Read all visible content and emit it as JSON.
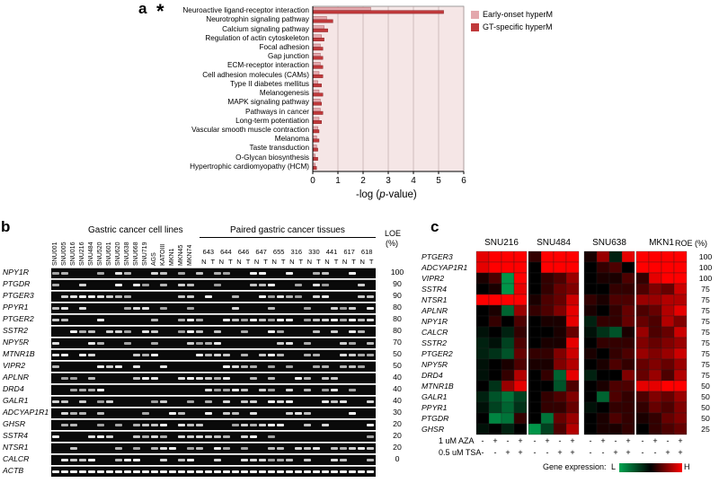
{
  "panel_labels": {
    "a": "a",
    "b": "b",
    "c": "c"
  },
  "chart_data": [
    {
      "type": "bar",
      "panel": "a",
      "star_marker": "*",
      "categories": [
        "Neuroactive ligand-receptor interaction",
        "Neurotrophin signaling pathway",
        "Calcium signaling pathway",
        "Regulation of actin cytoskeleton",
        "Focal adhesion",
        "Gap junction",
        "ECM-receptor interaction",
        "Cell adhesion molecules (CAMs)",
        "Type II diabetes mellitus",
        "Melanogenesis",
        "MAPK signaling pathway",
        "Pathways in cancer",
        "Long-term potentiation",
        "Vascular smooth muscle contraction",
        "Melanoma",
        "Taste transduction",
        "O-Glycan biosynthesis",
        "Hypertrophic cardiomyopathy (HCM)"
      ],
      "series": [
        {
          "name": "Early-onset hyperM",
          "color": "#e3a8ad",
          "values": [
            2.3,
            0.55,
            0.45,
            0.35,
            0.3,
            0.3,
            0.3,
            0.25,
            0.2,
            0.25,
            0.3,
            0.3,
            0.25,
            0.2,
            0.15,
            0.15,
            0.1,
            0.1
          ]
        },
        {
          "name": "GT-specific hyperM",
          "color": "#c0393b",
          "values": [
            5.2,
            0.8,
            0.6,
            0.45,
            0.4,
            0.4,
            0.4,
            0.4,
            0.35,
            0.4,
            0.35,
            0.4,
            0.35,
            0.25,
            0.25,
            0.2,
            0.2,
            0.15
          ]
        }
      ],
      "xlabel_prefix": "-log (",
      "xlabel_italic": "p",
      "xlabel_suffix": "-value)",
      "xticks": [
        "0",
        "1",
        "2",
        "3",
        "4",
        "5",
        "6"
      ],
      "xlim": [
        0,
        6
      ],
      "plot_background": "#f5e6e6",
      "legend_position": "top-right"
    },
    {
      "type": "table",
      "panel": "b",
      "group_labels": {
        "cell_lines": "Gastric cancer cell lines",
        "tissues": "Paired gastric cancer tissues"
      },
      "cell_lines": [
        "SNU001",
        "SNU005",
        "SNU016",
        "SNU216",
        "SNU484",
        "SNU520",
        "SNU601",
        "SNU620",
        "SNU638",
        "SNU668",
        "SNU719",
        "AGS",
        "KATOIII",
        "MKN1",
        "MKN45",
        "MKN74"
      ],
      "tissue_pairs": [
        "643",
        "644",
        "646",
        "647",
        "655",
        "316",
        "330",
        "441",
        "617",
        "618"
      ],
      "pair_labels": [
        "N",
        "T"
      ],
      "loe_header": "LOE",
      "loe_unit": "(%)",
      "genes": [
        "NPY1R",
        "PTGDR",
        "PTGER3",
        "PPYR1",
        "PTGER2",
        "SSTR2",
        "NPY5R",
        "MTNR1B",
        "VIPR2",
        "APLNR",
        "DRD4",
        "GALR1",
        "ADCYAP1R1",
        "GHSR",
        "SSTR4",
        "NTSR1",
        "CALCR",
        "ACTB"
      ],
      "loe_values": [
        "100",
        "90",
        "90",
        "80",
        "80",
        "80",
        "70",
        "50",
        "50",
        "40",
        "40",
        "40",
        "30",
        "20",
        "20",
        "20",
        "0",
        ""
      ]
    },
    {
      "type": "heatmap",
      "panel": "c",
      "cell_lines": [
        "SNU216",
        "SNU484",
        "SNU638",
        "MKN1"
      ],
      "roe_header": "ROE (%)",
      "genes": [
        "PTGER3",
        "ADCYAP1R1",
        "VIPR2",
        "SSTR4",
        "NTSR1",
        "APLNR",
        "NPY1R",
        "CALCR",
        "SSTR2",
        "PTGER2",
        "NPY5R",
        "DRD4",
        "MTNR1B",
        "GALR1",
        "PPYR1",
        "PTGDR",
        "GHSR"
      ],
      "roe_values": [
        "100",
        "100",
        "100",
        "75",
        "75",
        "75",
        "75",
        "75",
        "75",
        "75",
        "75",
        "75",
        "50",
        "50",
        "50",
        "50",
        "25"
      ],
      "treatments": [
        {
          "label": "1 uM AZA",
          "signs": [
            "-",
            "+",
            "-",
            "+"
          ]
        },
        {
          "label": "0.5 uM TSA",
          "signs": [
            "-",
            "-",
            "+",
            "+"
          ]
        }
      ],
      "colorbar": {
        "label": "Gene expression:",
        "low": "L",
        "high": "H",
        "colors": [
          "#00a651",
          "#000000",
          "#ff0000"
        ]
      },
      "values": [
        [
          [
            0.9,
            1.0,
            1.0,
            1.0
          ],
          [
            0.2,
            1.0,
            1.0,
            1.0
          ],
          [
            0.1,
            0.6,
            -0.2,
            0.9
          ],
          [
            1.0,
            1.0,
            1.0,
            1.0
          ]
        ],
        [
          [
            0.9,
            1.0,
            1.0,
            1.0
          ],
          [
            0.0,
            1.0,
            1.0,
            1.0
          ],
          [
            0.0,
            0.2,
            0.3,
            0.0
          ],
          [
            1.0,
            1.0,
            1.0,
            1.0
          ]
        ],
        [
          [
            0.1,
            0.3,
            -0.9,
            1.0
          ],
          [
            0.0,
            0.2,
            0.3,
            0.6
          ],
          [
            0.0,
            0.1,
            0.1,
            0.3
          ],
          [
            0.2,
            0.9,
            1.0,
            1.0
          ]
        ],
        [
          [
            0.0,
            0.1,
            -0.9,
            0.9
          ],
          [
            0.0,
            0.2,
            0.4,
            0.5
          ],
          [
            0.0,
            0.0,
            0.2,
            0.2
          ],
          [
            0.3,
            0.5,
            0.4,
            0.8
          ]
        ],
        [
          [
            1.0,
            1.0,
            1.0,
            1.0
          ],
          [
            0.1,
            0.3,
            0.4,
            0.8
          ],
          [
            0.2,
            0.1,
            0.3,
            0.3
          ],
          [
            0.6,
            0.6,
            0.7,
            0.7
          ]
        ],
        [
          [
            0.0,
            0.1,
            -0.6,
            0.6
          ],
          [
            0.2,
            0.3,
            0.5,
            0.9
          ],
          [
            0.1,
            0.0,
            0.2,
            0.4
          ],
          [
            0.3,
            0.4,
            0.7,
            0.9
          ]
        ],
        [
          [
            0.0,
            0.2,
            0.0,
            0.3
          ],
          [
            0.0,
            0.1,
            0.1,
            0.9
          ],
          [
            -0.2,
            0.2,
            0.2,
            0.4
          ],
          [
            0.4,
            0.3,
            0.7,
            0.5
          ]
        ],
        [
          [
            -0.1,
            0.0,
            -0.2,
            0.2
          ],
          [
            0.0,
            0.0,
            0.1,
            0.4
          ],
          [
            -0.1,
            -0.3,
            -0.5,
            0.1
          ],
          [
            0.6,
            0.3,
            0.4,
            0.8
          ]
        ],
        [
          [
            -0.2,
            -0.1,
            -0.4,
            0.3
          ],
          [
            0.0,
            0.1,
            0.1,
            0.9
          ],
          [
            0.0,
            0.2,
            0.2,
            0.2
          ],
          [
            0.5,
            0.4,
            0.5,
            0.6
          ]
        ],
        [
          [
            -0.2,
            -0.3,
            -0.5,
            0.4
          ],
          [
            0.2,
            0.2,
            0.5,
            0.8
          ],
          [
            0.1,
            0.0,
            0.2,
            0.3
          ],
          [
            0.6,
            0.5,
            0.6,
            0.8
          ]
        ],
        [
          [
            -0.1,
            0.0,
            0.1,
            0.3
          ],
          [
            0.1,
            0.1,
            0.5,
            0.7
          ],
          [
            0.0,
            0.1,
            0.3,
            0.2
          ],
          [
            0.4,
            0.5,
            0.4,
            0.6
          ]
        ],
        [
          [
            -0.1,
            0.0,
            0.2,
            0.7
          ],
          [
            0.0,
            0.2,
            -0.6,
            0.9
          ],
          [
            -0.2,
            0.0,
            0.0,
            0.5
          ],
          [
            0.4,
            0.6,
            0.3,
            0.7
          ]
        ],
        [
          [
            0.0,
            -0.3,
            0.6,
            0.9
          ],
          [
            0.0,
            0.0,
            -0.5,
            0.3
          ],
          [
            0.0,
            0.1,
            0.3,
            0.3
          ],
          [
            0.9,
            0.9,
            1.0,
            1.0
          ]
        ],
        [
          [
            -0.2,
            -0.5,
            -0.7,
            -0.4
          ],
          [
            0.0,
            0.2,
            0.3,
            0.5
          ],
          [
            0.0,
            -0.6,
            0.3,
            0.2
          ],
          [
            0.3,
            0.5,
            0.4,
            0.6
          ]
        ],
        [
          [
            -0.1,
            -0.4,
            -0.6,
            -0.3
          ],
          [
            0.0,
            0.2,
            0.2,
            0.4
          ],
          [
            -0.1,
            0.0,
            0.2,
            0.2
          ],
          [
            0.2,
            0.4,
            0.3,
            0.5
          ]
        ],
        [
          [
            0.0,
            -0.8,
            -0.7,
            0.2
          ],
          [
            0.0,
            -0.7,
            0.4,
            0.6
          ],
          [
            0.0,
            0.1,
            0.3,
            0.2
          ],
          [
            0.1,
            0.2,
            0.4,
            0.5
          ]
        ],
        [
          [
            -0.1,
            0.0,
            -0.2,
            0.0
          ],
          [
            -0.9,
            -0.4,
            0.3,
            0.7
          ],
          [
            0.0,
            0.1,
            0.1,
            0.2
          ],
          [
            0.0,
            0.2,
            0.3,
            0.4
          ]
        ]
      ]
    }
  ]
}
